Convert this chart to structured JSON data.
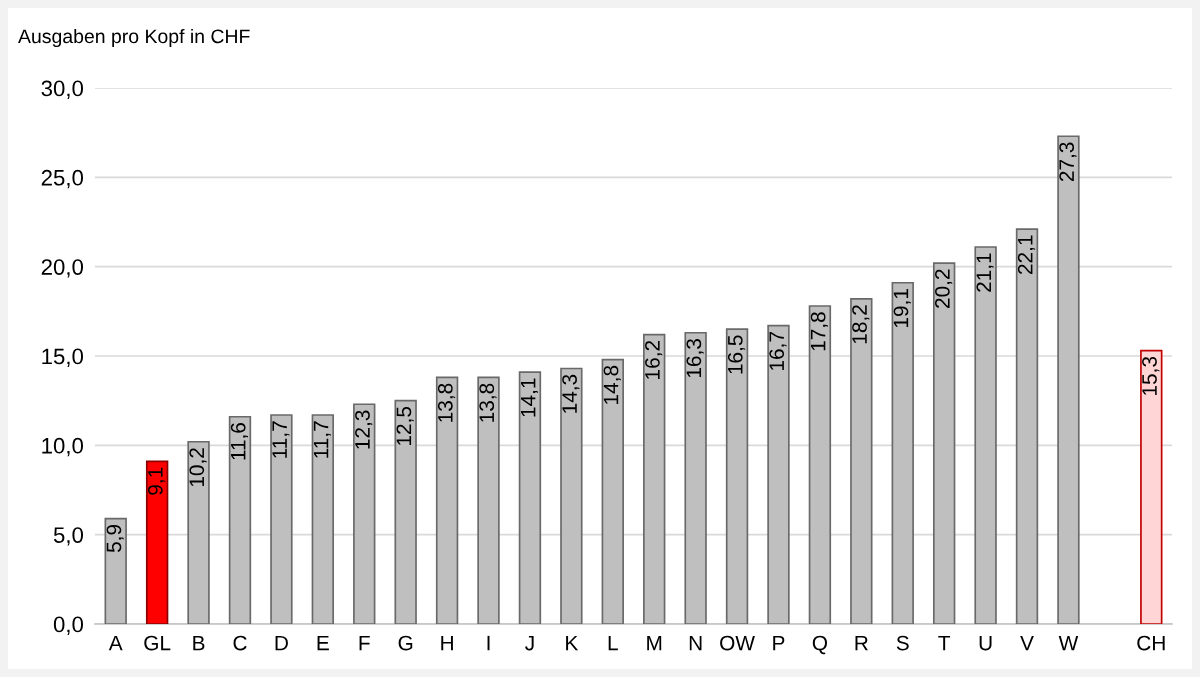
{
  "chart_data": {
    "type": "bar",
    "title": "Ausgaben pro Kopf in CHF",
    "categories": [
      "A",
      "GL",
      "B",
      "C",
      "D",
      "E",
      "F",
      "G",
      "H",
      "I",
      "J",
      "K",
      "L",
      "M",
      "N",
      "OW",
      "P",
      "Q",
      "R",
      "S",
      "T",
      "U",
      "V",
      "W",
      null,
      "CH"
    ],
    "values": [
      5.9,
      9.1,
      10.2,
      11.6,
      11.7,
      11.7,
      12.3,
      12.5,
      13.8,
      13.8,
      14.1,
      14.3,
      14.8,
      16.2,
      16.3,
      16.5,
      16.7,
      17.8,
      18.2,
      19.1,
      20.2,
      21.1,
      22.1,
      27.3,
      null,
      15.3
    ],
    "colors": [
      "#bfbfbf",
      "#ff0000",
      "#bfbfbf",
      "#bfbfbf",
      "#bfbfbf",
      "#bfbfbf",
      "#bfbfbf",
      "#bfbfbf",
      "#bfbfbf",
      "#bfbfbf",
      "#bfbfbf",
      "#bfbfbf",
      "#bfbfbf",
      "#bfbfbf",
      "#bfbfbf",
      "#bfbfbf",
      "#bfbfbf",
      "#bfbfbf",
      "#bfbfbf",
      "#bfbfbf",
      "#bfbfbf",
      "#bfbfbf",
      "#bfbfbf",
      "#bfbfbf",
      null,
      "#ffd5d5"
    ],
    "value_labels": [
      "5,9",
      "9,1",
      "10,2",
      "11,6",
      "11,7",
      "11,7",
      "12,3",
      "12,5",
      "13,8",
      "13,8",
      "14,1",
      "14,3",
      "14,8",
      "16,2",
      "16,3",
      "16,5",
      "16,7",
      "17,8",
      "18,2",
      "19,1",
      "20,2",
      "21,1",
      "22,1",
      "27,3",
      null,
      "15,3"
    ],
    "ylim": [
      0,
      30
    ],
    "yticks": [
      {
        "value": 0,
        "label": "0,0"
      },
      {
        "value": 5,
        "label": "5,0"
      },
      {
        "value": 10,
        "label": "10,0"
      },
      {
        "value": 15,
        "label": "15,0"
      },
      {
        "value": 20,
        "label": "20,0"
      },
      {
        "value": 25,
        "label": "25,0"
      },
      {
        "value": 30,
        "label": "30,0"
      }
    ],
    "grid": "y"
  }
}
